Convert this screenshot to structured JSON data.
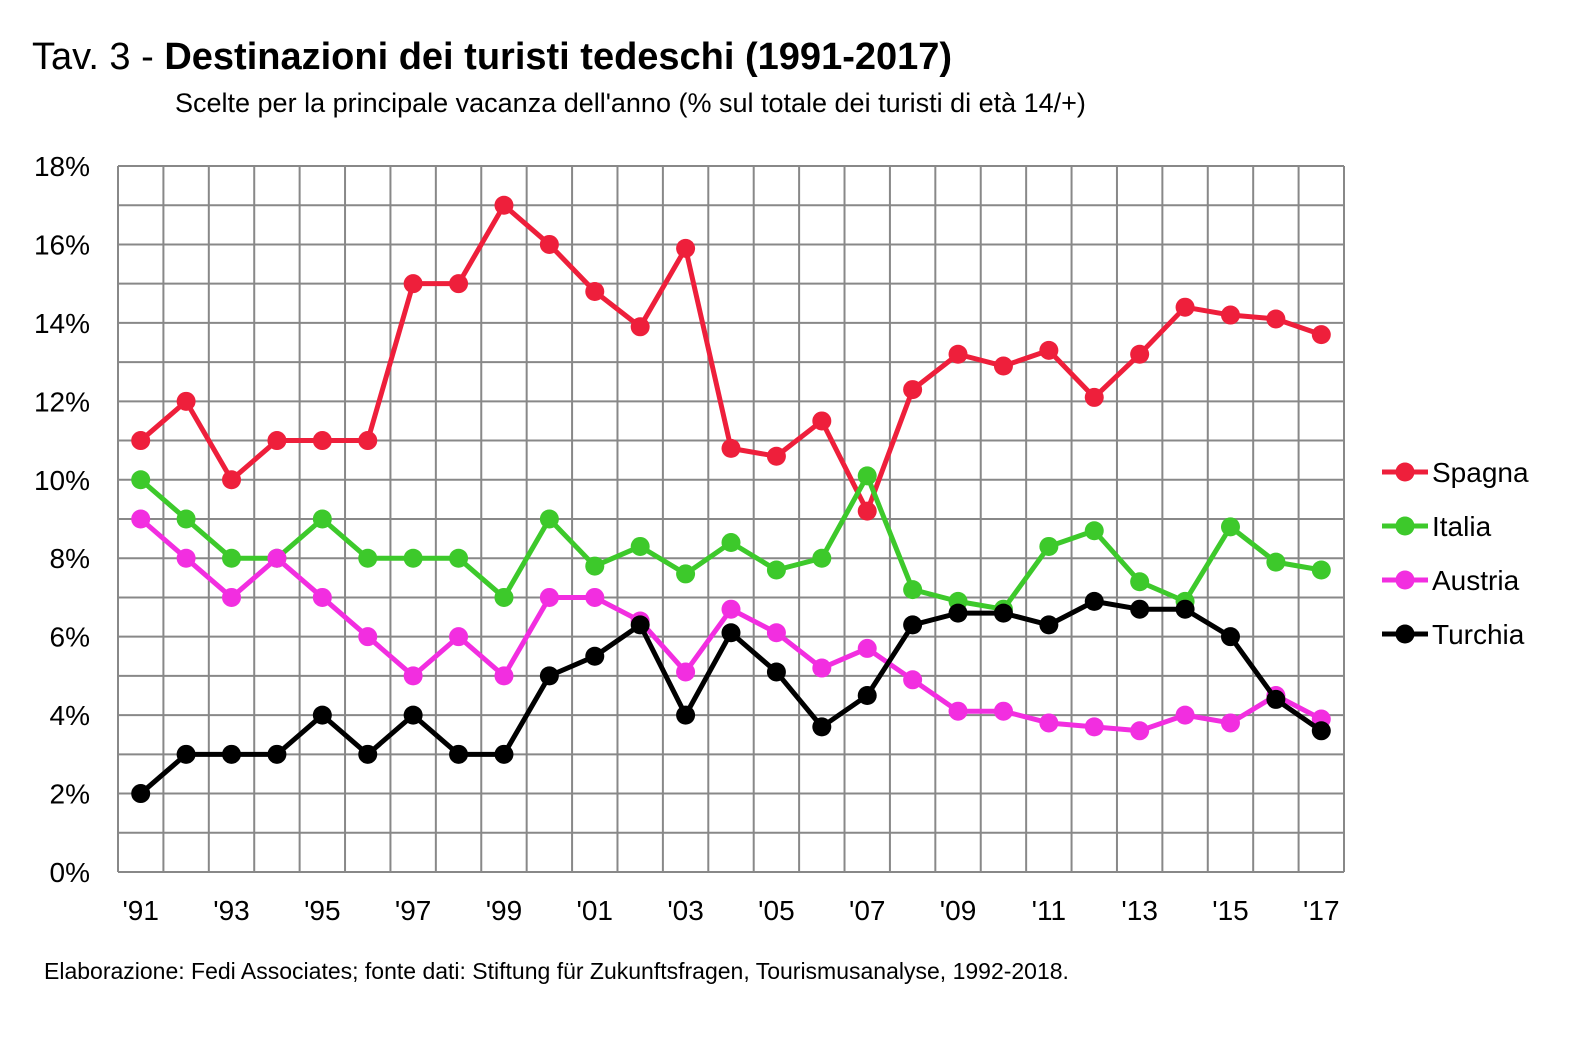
{
  "chart_data": {
    "type": "line",
    "title_prefix": "Tav. 3 - ",
    "title": "Destinazioni dei turisti tedeschi (1991-2017)",
    "subtitle": "Scelte per la principale vacanza dell'anno (% sul totale dei turisti di età 14/+)",
    "footer": "Elaborazione: Fedi Associates; fonte dati: Stiftung für Zukunftsfragen, Tourismusanalyse, 1992-2018.",
    "x": [
      "'91",
      "'92",
      "'93",
      "'94",
      "'95",
      "'96",
      "'97",
      "'98",
      "'99",
      "'00",
      "'01",
      "'02",
      "'03",
      "'04",
      "'05",
      "'06",
      "'07",
      "'08",
      "'09",
      "'10",
      "'11",
      "'12",
      "'13",
      "'14",
      "'15",
      "'16",
      "'17"
    ],
    "x_tick_labels": [
      "'91",
      "",
      "'93",
      "",
      "'95",
      "",
      "'97",
      "",
      "'99",
      "",
      "'01",
      "",
      "'03",
      "",
      "'05",
      "",
      "'07",
      "",
      "'09",
      "",
      "'11",
      "",
      "'13",
      "",
      "'15",
      "",
      "'17"
    ],
    "y_ticks": [
      "0%",
      "2%",
      "4%",
      "6%",
      "8%",
      "10%",
      "12%",
      "14%",
      "16%",
      "18%"
    ],
    "ylim": [
      0,
      18
    ],
    "grid": true,
    "legend_position": "right",
    "series": [
      {
        "name": "Spagna",
        "color": "#ee1f3b",
        "values": [
          11,
          12,
          10,
          11,
          11,
          11,
          15,
          15,
          17,
          16,
          14.8,
          13.9,
          15.9,
          10.8,
          10.6,
          11.5,
          9.2,
          12.3,
          13.2,
          12.9,
          13.3,
          12.1,
          13.2,
          14.4,
          14.2,
          14.1,
          13.7
        ]
      },
      {
        "name": "Italia",
        "color": "#3dc92b",
        "values": [
          10,
          9,
          8,
          8,
          9,
          8,
          8,
          8,
          7,
          9,
          7.8,
          8.3,
          7.6,
          8.4,
          7.7,
          8,
          10.1,
          7.2,
          6.9,
          6.7,
          8.3,
          8.7,
          7.4,
          6.9,
          8.8,
          7.9,
          7.7
        ]
      },
      {
        "name": "Austria",
        "color": "#f22ee0",
        "values": [
          9,
          8,
          7,
          8,
          7,
          6,
          5,
          6,
          5,
          7,
          7,
          6.4,
          5.1,
          6.7,
          6.1,
          5.2,
          5.7,
          4.9,
          4.1,
          4.1,
          3.8,
          3.7,
          3.6,
          4.0,
          3.8,
          4.5,
          3.9
        ]
      },
      {
        "name": "Turchia",
        "color": "#000000",
        "values": [
          2,
          3,
          3,
          3,
          4,
          3,
          4,
          3,
          3,
          5,
          5.5,
          6.3,
          4,
          6.1,
          5.1,
          3.7,
          4.5,
          6.3,
          6.6,
          6.6,
          6.3,
          6.9,
          6.7,
          6.7,
          6.0,
          4.4,
          3.6
        ]
      }
    ]
  }
}
